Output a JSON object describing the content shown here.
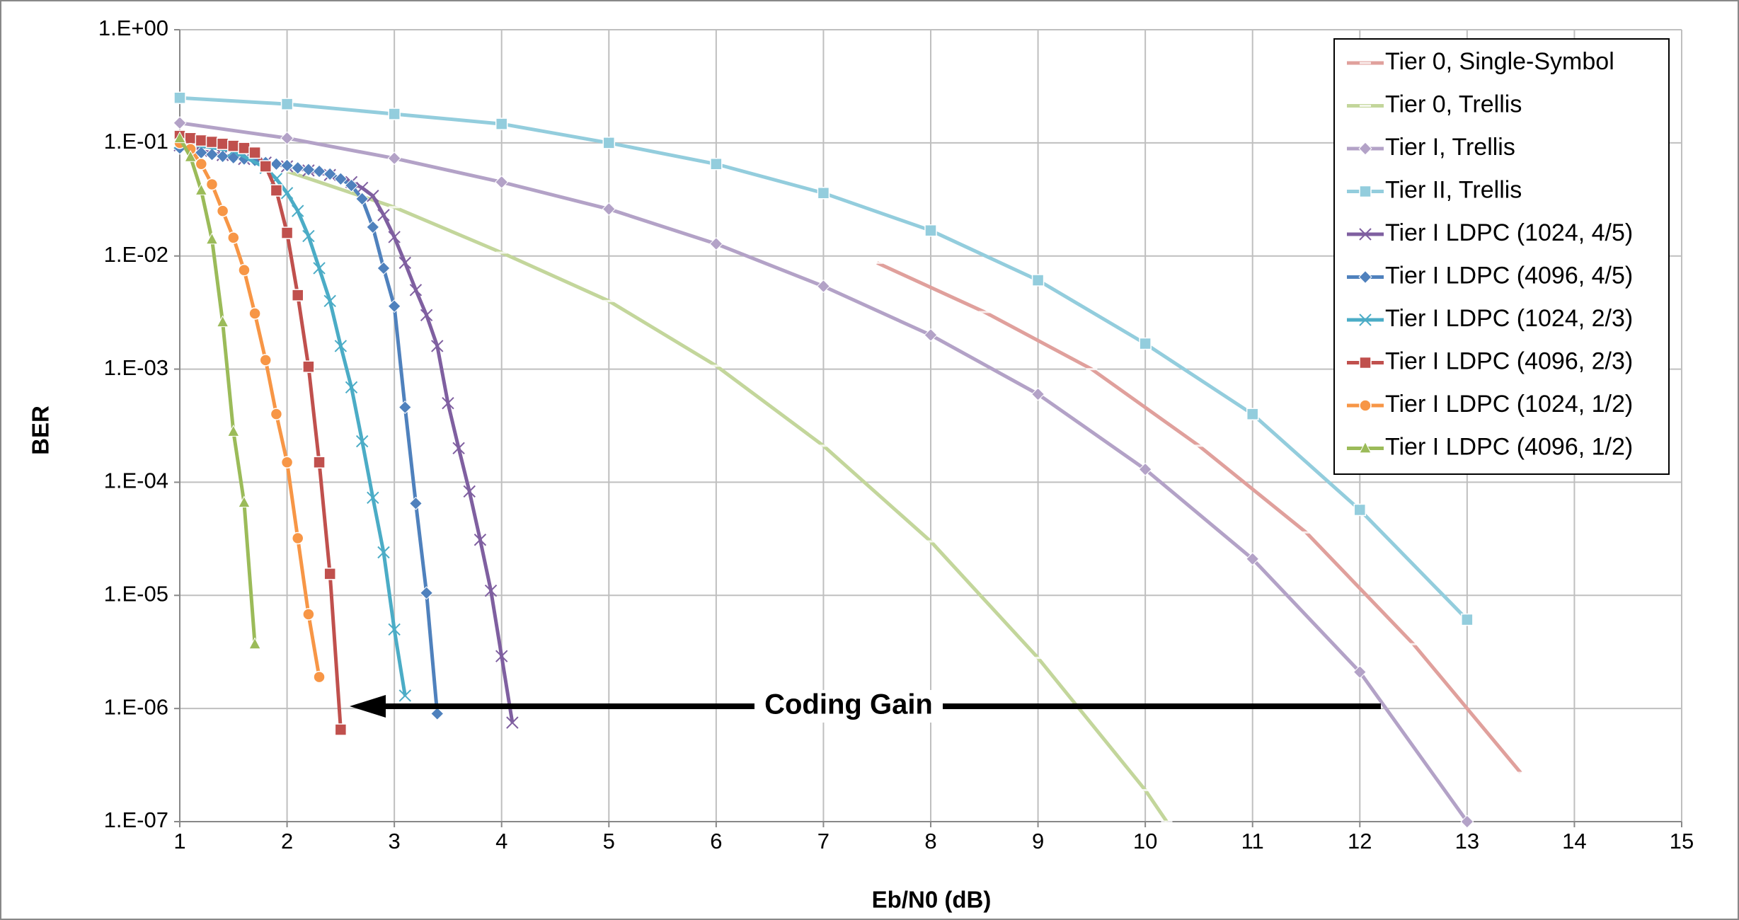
{
  "chart_data": {
    "type": "line",
    "ylog": true,
    "grid": true,
    "legend": "upper right",
    "xlabel": "Eb/N0 (dB)",
    "ylabel": "BER",
    "xlim": [
      1,
      15
    ],
    "xticks": [
      1,
      2,
      3,
      4,
      5,
      6,
      7,
      8,
      9,
      10,
      11,
      12,
      13,
      14,
      15
    ],
    "ylim": [
      1e-07,
      1
    ],
    "yticks": [
      {
        "value": 1,
        "label": "1.E+00"
      },
      {
        "value": 0.1,
        "label": "1.E-01"
      },
      {
        "value": 0.01,
        "label": "1.E-02"
      },
      {
        "value": 0.001,
        "label": "1.E-03"
      },
      {
        "value": 0.0001,
        "label": "1.E-04"
      },
      {
        "value": 1e-05,
        "label": "1.E-05"
      },
      {
        "value": 1e-06,
        "label": "1.E-06"
      },
      {
        "value": 1e-07,
        "label": "1.E-07"
      }
    ],
    "annotation": "Coding Gain",
    "series": [
      {
        "name": "Tier 0, Single-Symbol",
        "color": "#e0a09c",
        "marker": "dash",
        "x": [
          7.5,
          8.5,
          9.5,
          10.5,
          11.5,
          12.5,
          13.5
        ],
        "values": [
          0.0087,
          0.0032,
          0.001,
          0.00021,
          3.6e-05,
          3.7e-06,
          2.7e-07
        ]
      },
      {
        "name": "Tier 0, Trellis",
        "color": "#c3d69b",
        "marker": "dash",
        "x": [
          2,
          3,
          4,
          5,
          6,
          7,
          8,
          9,
          10,
          10.2
        ],
        "values": [
          0.056,
          0.027,
          0.0107,
          0.004,
          0.00107,
          0.00021,
          3e-05,
          2.8e-06,
          1.9e-07,
          1e-07
        ]
      },
      {
        "name": "Tier I, Trellis",
        "color": "#b3a2c7",
        "marker": "diamond",
        "x": [
          1,
          2,
          3,
          4,
          5,
          6,
          7,
          8,
          9,
          10,
          11,
          12,
          13
        ],
        "values": [
          0.15,
          0.11,
          0.073,
          0.045,
          0.026,
          0.0128,
          0.0054,
          0.002,
          0.0006,
          0.00013,
          2.1e-05,
          2.1e-06,
          1e-07
        ]
      },
      {
        "name": "Tier II, Trellis",
        "color": "#93cddd",
        "marker": "square",
        "x": [
          1,
          2,
          3,
          4,
          5,
          6,
          7,
          8,
          9,
          10,
          11,
          12,
          13
        ],
        "values": [
          0.25,
          0.22,
          0.18,
          0.147,
          0.1,
          0.065,
          0.036,
          0.0168,
          0.0061,
          0.00168,
          0.0004,
          5.7e-05,
          6.1e-06
        ]
      },
      {
        "name": "Tier I LDPC (1024, 4/5)",
        "color": "#7f5fa0",
        "marker": "x",
        "x": [
          1,
          1.2,
          1.4,
          1.6,
          1.8,
          2,
          2.2,
          2.4,
          2.6,
          2.7,
          2.8,
          2.9,
          3,
          3.1,
          3.2,
          3.3,
          3.4,
          3.5,
          3.6,
          3.7,
          3.8,
          3.9,
          4,
          4.1
        ],
        "values": [
          0.095,
          0.085,
          0.078,
          0.072,
          0.067,
          0.062,
          0.057,
          0.052,
          0.045,
          0.04,
          0.034,
          0.023,
          0.0147,
          0.0087,
          0.005,
          0.003,
          0.0016,
          0.0005,
          0.0002,
          8.3e-05,
          3.1e-05,
          1.1e-05,
          2.9e-06,
          7.5e-07
        ]
      },
      {
        "name": "Tier I LDPC (4096, 4/5)",
        "color": "#4f81bd",
        "marker": "diamond",
        "x": [
          1,
          1.1,
          1.2,
          1.3,
          1.4,
          1.5,
          1.6,
          1.7,
          1.8,
          1.9,
          2,
          2.1,
          2.2,
          2.3,
          2.4,
          2.5,
          2.6,
          2.7,
          2.8,
          2.9,
          3,
          3.1,
          3.2,
          3.3,
          3.4
        ],
        "values": [
          0.09,
          0.085,
          0.082,
          0.079,
          0.076,
          0.074,
          0.072,
          0.07,
          0.067,
          0.065,
          0.063,
          0.06,
          0.058,
          0.056,
          0.053,
          0.048,
          0.042,
          0.032,
          0.018,
          0.0078,
          0.0036,
          0.00046,
          6.5e-05,
          1.05e-05,
          9e-07
        ]
      },
      {
        "name": "Tier I LDPC (1024, 2/3)",
        "color": "#4bacc6",
        "marker": "x",
        "x": [
          1,
          1.5,
          1.8,
          1.9,
          2,
          2.1,
          2.2,
          2.3,
          2.4,
          2.5,
          2.6,
          2.7,
          2.8,
          2.9,
          3,
          3.1
        ],
        "values": [
          0.1,
          0.085,
          0.06,
          0.048,
          0.036,
          0.025,
          0.015,
          0.0078,
          0.004,
          0.0016,
          0.00069,
          0.00023,
          7.3e-05,
          2.4e-05,
          5e-06,
          1.3e-06
        ]
      },
      {
        "name": "Tier I LDPC (4096, 2/3)",
        "color": "#c0504d",
        "marker": "square",
        "x": [
          1,
          1.1,
          1.2,
          1.3,
          1.4,
          1.5,
          1.6,
          1.7,
          1.8,
          1.9,
          2,
          2.1,
          2.2,
          2.3,
          2.4,
          2.5
        ],
        "values": [
          0.115,
          0.11,
          0.105,
          0.102,
          0.098,
          0.094,
          0.09,
          0.082,
          0.062,
          0.038,
          0.016,
          0.0045,
          0.00105,
          0.00015,
          1.55e-05,
          6.5e-07
        ]
      },
      {
        "name": "Tier I LDPC (1024, 1/2)",
        "color": "#f79646",
        "marker": "circle",
        "x": [
          1,
          1.1,
          1.2,
          1.3,
          1.4,
          1.5,
          1.6,
          1.7,
          1.8,
          1.9,
          2,
          2.1,
          2.2,
          2.3
        ],
        "values": [
          0.1,
          0.088,
          0.065,
          0.043,
          0.025,
          0.0145,
          0.0075,
          0.0031,
          0.0012,
          0.0004,
          0.00015,
          3.2e-05,
          6.8e-06,
          1.9e-06
        ]
      },
      {
        "name": "Tier I LDPC (4096, 1/2)",
        "color": "#9bbb59",
        "marker": "triangle",
        "x": [
          1,
          1.1,
          1.2,
          1.3,
          1.4,
          1.5,
          1.6,
          1.7
        ],
        "values": [
          0.11,
          0.075,
          0.038,
          0.014,
          0.0026,
          0.00028,
          6.6e-05,
          3.7e-06
        ]
      }
    ]
  }
}
